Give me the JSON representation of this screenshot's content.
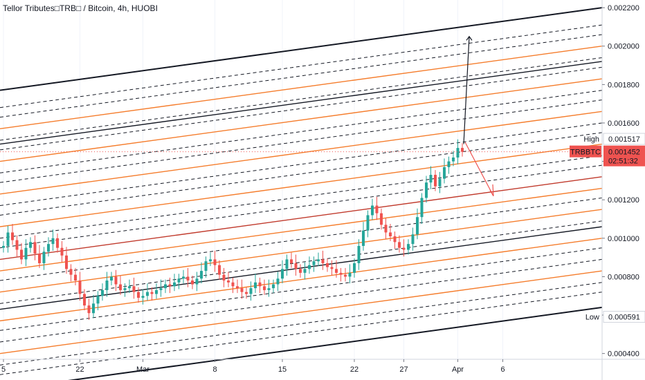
{
  "chart_data": {
    "type": "candlestick",
    "title": "Tellor Tributes□TRB□ / Bitcoin, 4h, HUOBI",
    "symbol": "TRBBTC",
    "ylim": [
      0.00037,
      0.00224
    ],
    "y_ticks": [
      "0.000400",
      "0.000600",
      "0.000800",
      "0.001000",
      "0.001200",
      "0.001400",
      "0.001600",
      "0.001800",
      "0.002000",
      "0.002200"
    ],
    "x_ticks": [
      "5",
      "22",
      "Mar",
      "8",
      "15",
      "22",
      "27",
      "Apr",
      "6"
    ],
    "x_tick_index": [
      0,
      17,
      31,
      47,
      62,
      78,
      89,
      101,
      111
    ],
    "last_price": "0.001452",
    "countdown": "02:51:32",
    "high_label": "High",
    "high_value": "0.001517",
    "low_label": "Low",
    "low_value": "0.000591",
    "close": [
      0.00096,
      0.00103,
      0.00099,
      0.00094,
      0.00089,
      0.00095,
      0.00098,
      0.00092,
      0.00087,
      0.00093,
      0.00097,
      0.001,
      0.00095,
      0.00091,
      0.00084,
      0.00081,
      0.00078,
      0.00071,
      0.00065,
      0.00061,
      0.00066,
      0.0007,
      0.00073,
      0.00078,
      0.0008,
      0.00076,
      0.00073,
      0.00074,
      0.00075,
      0.00072,
      0.00069,
      0.0007,
      0.00072,
      0.00071,
      0.00073,
      0.00074,
      0.00076,
      0.00075,
      0.00077,
      0.00079,
      0.0008,
      0.00078,
      0.00076,
      0.00079,
      0.00083,
      0.00088,
      0.00089,
      0.00086,
      0.00081,
      0.00078,
      0.00077,
      0.00075,
      0.00074,
      0.00072,
      0.00071,
      0.00074,
      0.00077,
      0.00075,
      0.00073,
      0.00074,
      0.00076,
      0.00079,
      0.00084,
      0.00089,
      0.00087,
      0.00084,
      0.00082,
      0.00084,
      0.00086,
      0.00088,
      0.00089,
      0.00087,
      0.00085,
      0.00084,
      0.00082,
      0.00081,
      0.0008,
      0.00082,
      0.00087,
      0.00096,
      0.00104,
      0.00112,
      0.00117,
      0.00113,
      0.00107,
      0.00103,
      0.00101,
      0.00098,
      0.00095,
      0.00094,
      0.00097,
      0.00102,
      0.00111,
      0.00121,
      0.00129,
      0.00133,
      0.00127,
      0.00131,
      0.00137,
      0.0014,
      0.00142,
      0.00147,
      0.00145
    ]
  },
  "overlays": {
    "pitchfork": "parallel channel with median-line levels (black, orange, dashed, red)",
    "arrows": [
      "up-projection arrow",
      "down-projection arrow"
    ]
  },
  "colors": {
    "up": "#26a69a",
    "down": "#ef5350",
    "price_label_bg": "#ef5350",
    "orange": "#f57c2b",
    "red": "#c0392b",
    "black": "#131722"
  }
}
